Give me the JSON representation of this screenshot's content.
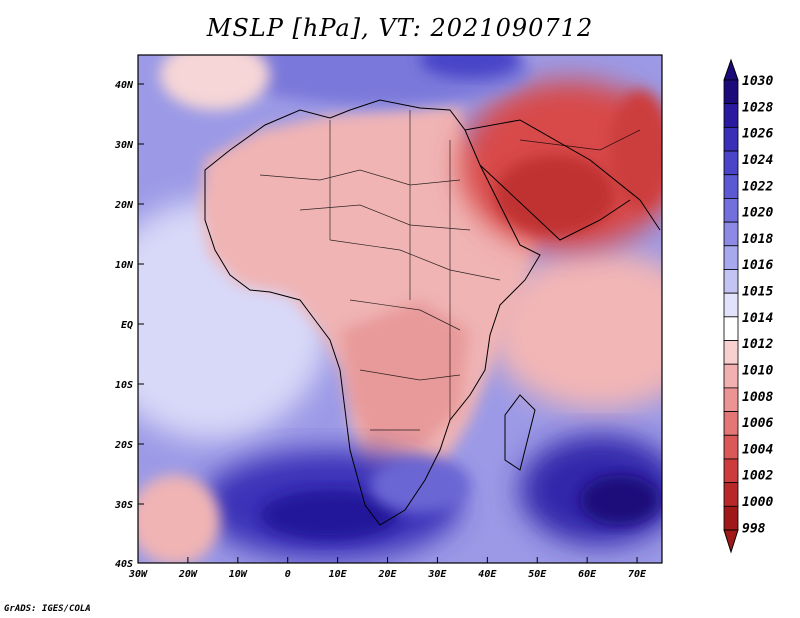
{
  "title": "MSLP [hPa], VT: 2021090712",
  "x_ticks": [
    "30W",
    "20W",
    "10W",
    "0",
    "10E",
    "20E",
    "30E",
    "40E",
    "50E",
    "60E",
    "70E"
  ],
  "y_ticks": [
    "40N",
    "30N",
    "20N",
    "10N",
    "EQ",
    "10S",
    "20S",
    "30S",
    "40S"
  ],
  "colorbar": {
    "labels": [
      "1030",
      "1028",
      "1026",
      "1024",
      "1022",
      "1020",
      "1018",
      "1016",
      "1015",
      "1014",
      "1012",
      "1010",
      "1008",
      "1006",
      "1004",
      "1002",
      "1000",
      "998"
    ],
    "colors": [
      "#1a0a7a",
      "#2a1aa0",
      "#3a30b8",
      "#4a44c8",
      "#5c5ad2",
      "#7270dc",
      "#8c8ae4",
      "#a8a8ee",
      "#c4c4f4",
      "#e2e2fa",
      "#ffffff",
      "#f8d0d0",
      "#f2b0b0",
      "#ec9494",
      "#e47676",
      "#da5858",
      "#cc3c3c",
      "#b82828",
      "#a01818"
    ]
  },
  "credit": "GrADS: IGES/COLA"
}
